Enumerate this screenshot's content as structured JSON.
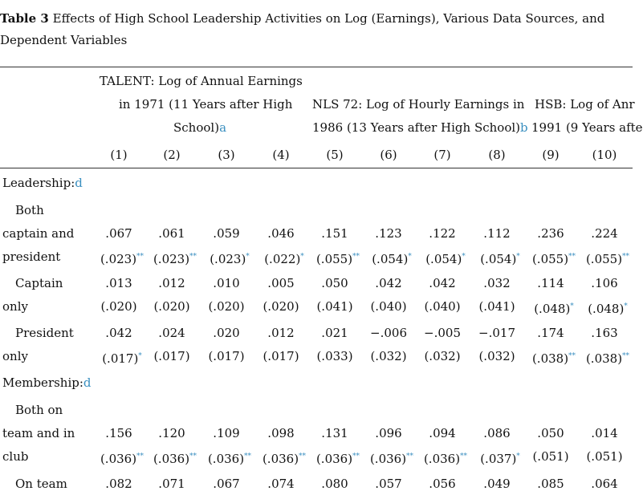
{
  "caption": {
    "label": "Table",
    "number": "3",
    "text_line1": "Effects of High School Leadership Activities on Log (Earnings), Various Data Sources, and",
    "text_line2": "Dependent Variables"
  },
  "headers": {
    "talent": [
      "TALENT: Log of Annual Earnings",
      "in 1971 (11 Years after High",
      "School)"
    ],
    "talent_note": "a",
    "nls": [
      "NLS 72: Log of Hourly Earnings in",
      "1986 (13 Years after High School)"
    ],
    "nls_note": "b",
    "hsb": [
      "HSB: Log of Anr",
      "1991 (9 Years afte"
    ]
  },
  "columns": [
    "(1)",
    "(2)",
    "(3)",
    "(4)",
    "(5)",
    "(6)",
    "(7)",
    "(8)",
    "(9)",
    "(10)"
  ],
  "sections": {
    "leadership": "Leadership:",
    "leadership_note": "d",
    "membership": "Membership:",
    "membership_note": "d"
  },
  "row_labels": {
    "both_1": "Both",
    "both_2": "captain and",
    "both_3": "president",
    "captain_1": "Captain",
    "captain_2": "only",
    "president_1": "President",
    "president_2": "only",
    "team_club_1": "Both on",
    "team_club_2": "team and in",
    "team_club_3": "club",
    "team_1": "On team"
  },
  "rows": [
    {
      "coef": [
        ".067",
        ".061",
        ".059",
        ".046",
        ".151",
        ".123",
        ".122",
        ".112",
        ".236",
        ".224"
      ],
      "se": [
        "(.023)",
        "(.023)",
        "(.023)",
        "(.022)",
        "(.055)",
        "(.054)",
        "(.054)",
        "(.054)",
        "(.055)",
        "(.055)"
      ],
      "stars": [
        "**",
        "**",
        "*",
        "*",
        "**",
        "*",
        "*",
        "*",
        "**",
        "**"
      ]
    },
    {
      "coef": [
        ".013",
        ".012",
        ".010",
        ".005",
        ".050",
        ".042",
        ".042",
        ".032",
        ".114",
        ".106"
      ],
      "se": [
        "(.020)",
        "(.020)",
        "(.020)",
        "(.020)",
        "(.041)",
        "(.040)",
        "(.040)",
        "(.041)",
        "(.048)",
        "(.048)"
      ],
      "stars": [
        "",
        "",
        "",
        "",
        "",
        "",
        "",
        "",
        "*",
        "*"
      ]
    },
    {
      "coef": [
        ".042",
        ".024",
        ".020",
        ".012",
        ".021",
        "−.006",
        "−.005",
        "−.017",
        ".174",
        ".163"
      ],
      "se": [
        "(.017)",
        "(.017)",
        "(.017)",
        "(.017)",
        "(.033)",
        "(.032)",
        "(.032)",
        "(.032)",
        "(.038)",
        "(.038)"
      ],
      "stars": [
        "*",
        "",
        "",
        "",
        "",
        "",
        "",
        "",
        "**",
        "**"
      ]
    },
    {
      "coef": [
        ".156",
        ".120",
        ".109",
        ".098",
        ".131",
        ".096",
        ".094",
        ".086",
        ".050",
        ".014"
      ],
      "se": [
        "(.036)",
        "(.036)",
        "(.036)",
        "(.036)",
        "(.036)",
        "(.036)",
        "(.036)",
        "(.037)",
        "(.051)",
        "(.051)"
      ],
      "stars": [
        "**",
        "**",
        "**",
        "**",
        "**",
        "**",
        "**",
        "*",
        "",
        ""
      ]
    },
    {
      "coef": [
        ".082",
        ".071",
        ".067",
        ".074",
        ".080",
        ".057",
        ".056",
        ".049",
        ".085",
        ".064"
      ],
      "se": [],
      "stars": []
    }
  ]
}
